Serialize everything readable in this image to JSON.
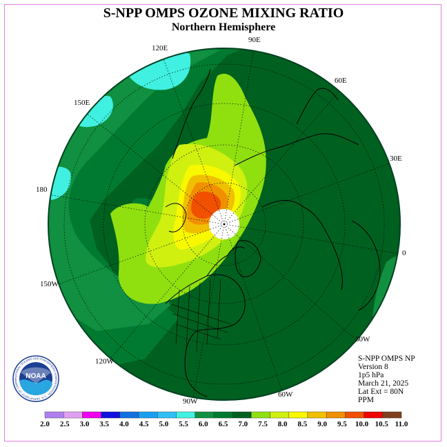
{
  "header": {
    "title": "S-NPP OMPS OZONE MIXING RATIO",
    "subtitle": "Northern Hemisphere"
  },
  "longitude_labels": {
    "l90e": "90E",
    "l120e": "120E",
    "l60e": "60E",
    "l150e": "150E",
    "l30e": "30E",
    "l180": "180",
    "l0": "0",
    "l150w": "150W",
    "l30w": "30W",
    "l120w": "120W",
    "l60w": "60W",
    "l90w": "90W"
  },
  "info": {
    "product": "S-NPP OMPS NP",
    "version": "Version 8",
    "level": "1p5 hPa",
    "date": "March 21, 2025",
    "lat_ext": "Lat Ext = 80N",
    "units": "PPM"
  },
  "logo": {
    "text": "NOAA",
    "ring_text": "NATIONAL OCEANIC AND ATMOSPHERIC ADMINISTRATION · U.S. DEPARTMENT OF COMMERCE"
  },
  "colorbar": {
    "labels": [
      "2.0",
      "2.5",
      "3.0",
      "3.5",
      "4.0",
      "4.5",
      "5.0",
      "5.5",
      "6.0",
      "6.5",
      "7.0",
      "7.5",
      "8.0",
      "8.5",
      "9.0",
      "9.5",
      "10.0",
      "10.5",
      "11.0"
    ],
    "colors": [
      "#b080f0",
      "#e0a0f0",
      "#f000f0",
      "#1010e0",
      "#1070e0",
      "#18a0f0",
      "#30c0f8",
      "#40f0e0",
      "#109040",
      "#007a30",
      "#006020",
      "#90e010",
      "#d0f010",
      "#f8f800",
      "#f0c000",
      "#f09000",
      "#f05000",
      "#f00000",
      "#804020"
    ]
  }
}
